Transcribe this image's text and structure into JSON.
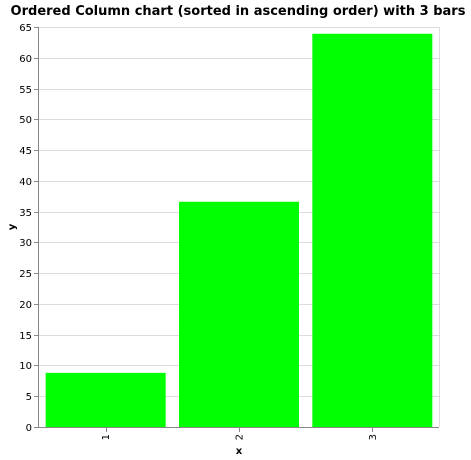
{
  "chart_data": {
    "type": "bar",
    "title": "Ordered Column chart (sorted in ascending order) with 3 bars",
    "xlabel": "x",
    "ylabel": "y",
    "categories": [
      "1",
      "2",
      "3"
    ],
    "values": [
      8.8,
      36.6,
      63.9
    ],
    "ylim": [
      0,
      65
    ],
    "yticks": [
      0,
      5,
      10,
      15,
      20,
      25,
      30,
      35,
      40,
      45,
      50,
      55,
      60,
      65
    ],
    "grid": true,
    "bar_color": "#00ff00",
    "grid_color": "#dddddd",
    "axis_color": "#888888"
  }
}
